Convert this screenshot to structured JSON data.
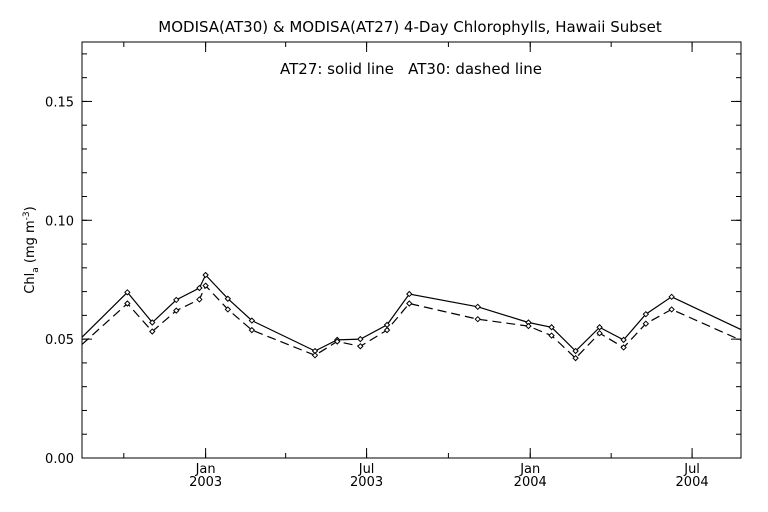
{
  "chart_data": {
    "type": "line",
    "title": "MODISA(AT30) & MODISA(AT27) 4-Day Chlorophylls, Hawaii Subset",
    "annotation": "AT27: solid line   AT30: dashed line",
    "ylabel": {
      "base": "Chl",
      "sub": "a",
      "unit_open": " (mg m",
      "unit_sup": "-3",
      "unit_close": ")"
    },
    "xlabel": "",
    "ylim": [
      0.0,
      0.175
    ],
    "xlim": [
      "2002-08-15",
      "2004-08-25"
    ],
    "y_ticks": [
      {
        "value": 0.0,
        "label": "0.00"
      },
      {
        "value": 0.05,
        "label": "0.05"
      },
      {
        "value": 0.1,
        "label": "0.10"
      },
      {
        "value": 0.15,
        "label": "0.15"
      }
    ],
    "x_ticks": [
      {
        "date": "2003-01-01",
        "month": "Jan",
        "year": "2003"
      },
      {
        "date": "2003-07-01",
        "month": "Jul",
        "year": "2003"
      },
      {
        "date": "2004-01-01",
        "month": "Jan",
        "year": "2004"
      },
      {
        "date": "2004-07-01",
        "month": "Jul",
        "year": "2004"
      }
    ],
    "series": [
      {
        "name": "AT27",
        "style": "solid",
        "points": [
          {
            "x": "2002-08-15",
            "y": 0.0508
          },
          {
            "x": "2002-10-05",
            "y": 0.0697
          },
          {
            "x": "2002-11-02",
            "y": 0.057
          },
          {
            "x": "2002-11-29",
            "y": 0.0665
          },
          {
            "x": "2002-12-25",
            "y": 0.0715
          },
          {
            "x": "2003-01-01",
            "y": 0.077
          },
          {
            "x": "2003-01-26",
            "y": 0.067
          },
          {
            "x": "2003-02-22",
            "y": 0.0578
          },
          {
            "x": "2003-05-04",
            "y": 0.045
          },
          {
            "x": "2003-05-29",
            "y": 0.0497
          },
          {
            "x": "2003-06-24",
            "y": 0.05
          },
          {
            "x": "2003-07-24",
            "y": 0.056
          },
          {
            "x": "2003-08-18",
            "y": 0.069
          },
          {
            "x": "2003-11-03",
            "y": 0.0636
          },
          {
            "x": "2003-12-30",
            "y": 0.057
          },
          {
            "x": "2004-01-25",
            "y": 0.055
          },
          {
            "x": "2004-02-21",
            "y": 0.045
          },
          {
            "x": "2004-03-19",
            "y": 0.055
          },
          {
            "x": "2004-04-15",
            "y": 0.0497
          },
          {
            "x": "2004-05-10",
            "y": 0.0605
          },
          {
            "x": "2004-06-08",
            "y": 0.0678
          },
          {
            "x": "2004-08-25",
            "y": 0.054
          }
        ]
      },
      {
        "name": "AT30",
        "style": "dashed",
        "points": [
          {
            "x": "2002-08-15",
            "y": 0.0478
          },
          {
            "x": "2002-10-05",
            "y": 0.065
          },
          {
            "x": "2002-11-02",
            "y": 0.0532
          },
          {
            "x": "2002-11-29",
            "y": 0.062
          },
          {
            "x": "2002-12-25",
            "y": 0.0667
          },
          {
            "x": "2003-01-01",
            "y": 0.0725
          },
          {
            "x": "2003-01-26",
            "y": 0.0625
          },
          {
            "x": "2003-02-22",
            "y": 0.0538
          },
          {
            "x": "2003-05-04",
            "y": 0.0432
          },
          {
            "x": "2003-05-29",
            "y": 0.049
          },
          {
            "x": "2003-06-24",
            "y": 0.047
          },
          {
            "x": "2003-07-24",
            "y": 0.0538
          },
          {
            "x": "2003-08-18",
            "y": 0.065
          },
          {
            "x": "2003-11-03",
            "y": 0.0584
          },
          {
            "x": "2003-12-30",
            "y": 0.0555
          },
          {
            "x": "2004-01-25",
            "y": 0.0515
          },
          {
            "x": "2004-02-21",
            "y": 0.042
          },
          {
            "x": "2004-03-19",
            "y": 0.0525
          },
          {
            "x": "2004-04-15",
            "y": 0.0465
          },
          {
            "x": "2004-05-10",
            "y": 0.0565
          },
          {
            "x": "2004-06-08",
            "y": 0.0625
          },
          {
            "x": "2004-08-25",
            "y": 0.0495
          }
        ]
      }
    ],
    "grid": false,
    "line_color": "#000000",
    "background": "#ffffff"
  }
}
